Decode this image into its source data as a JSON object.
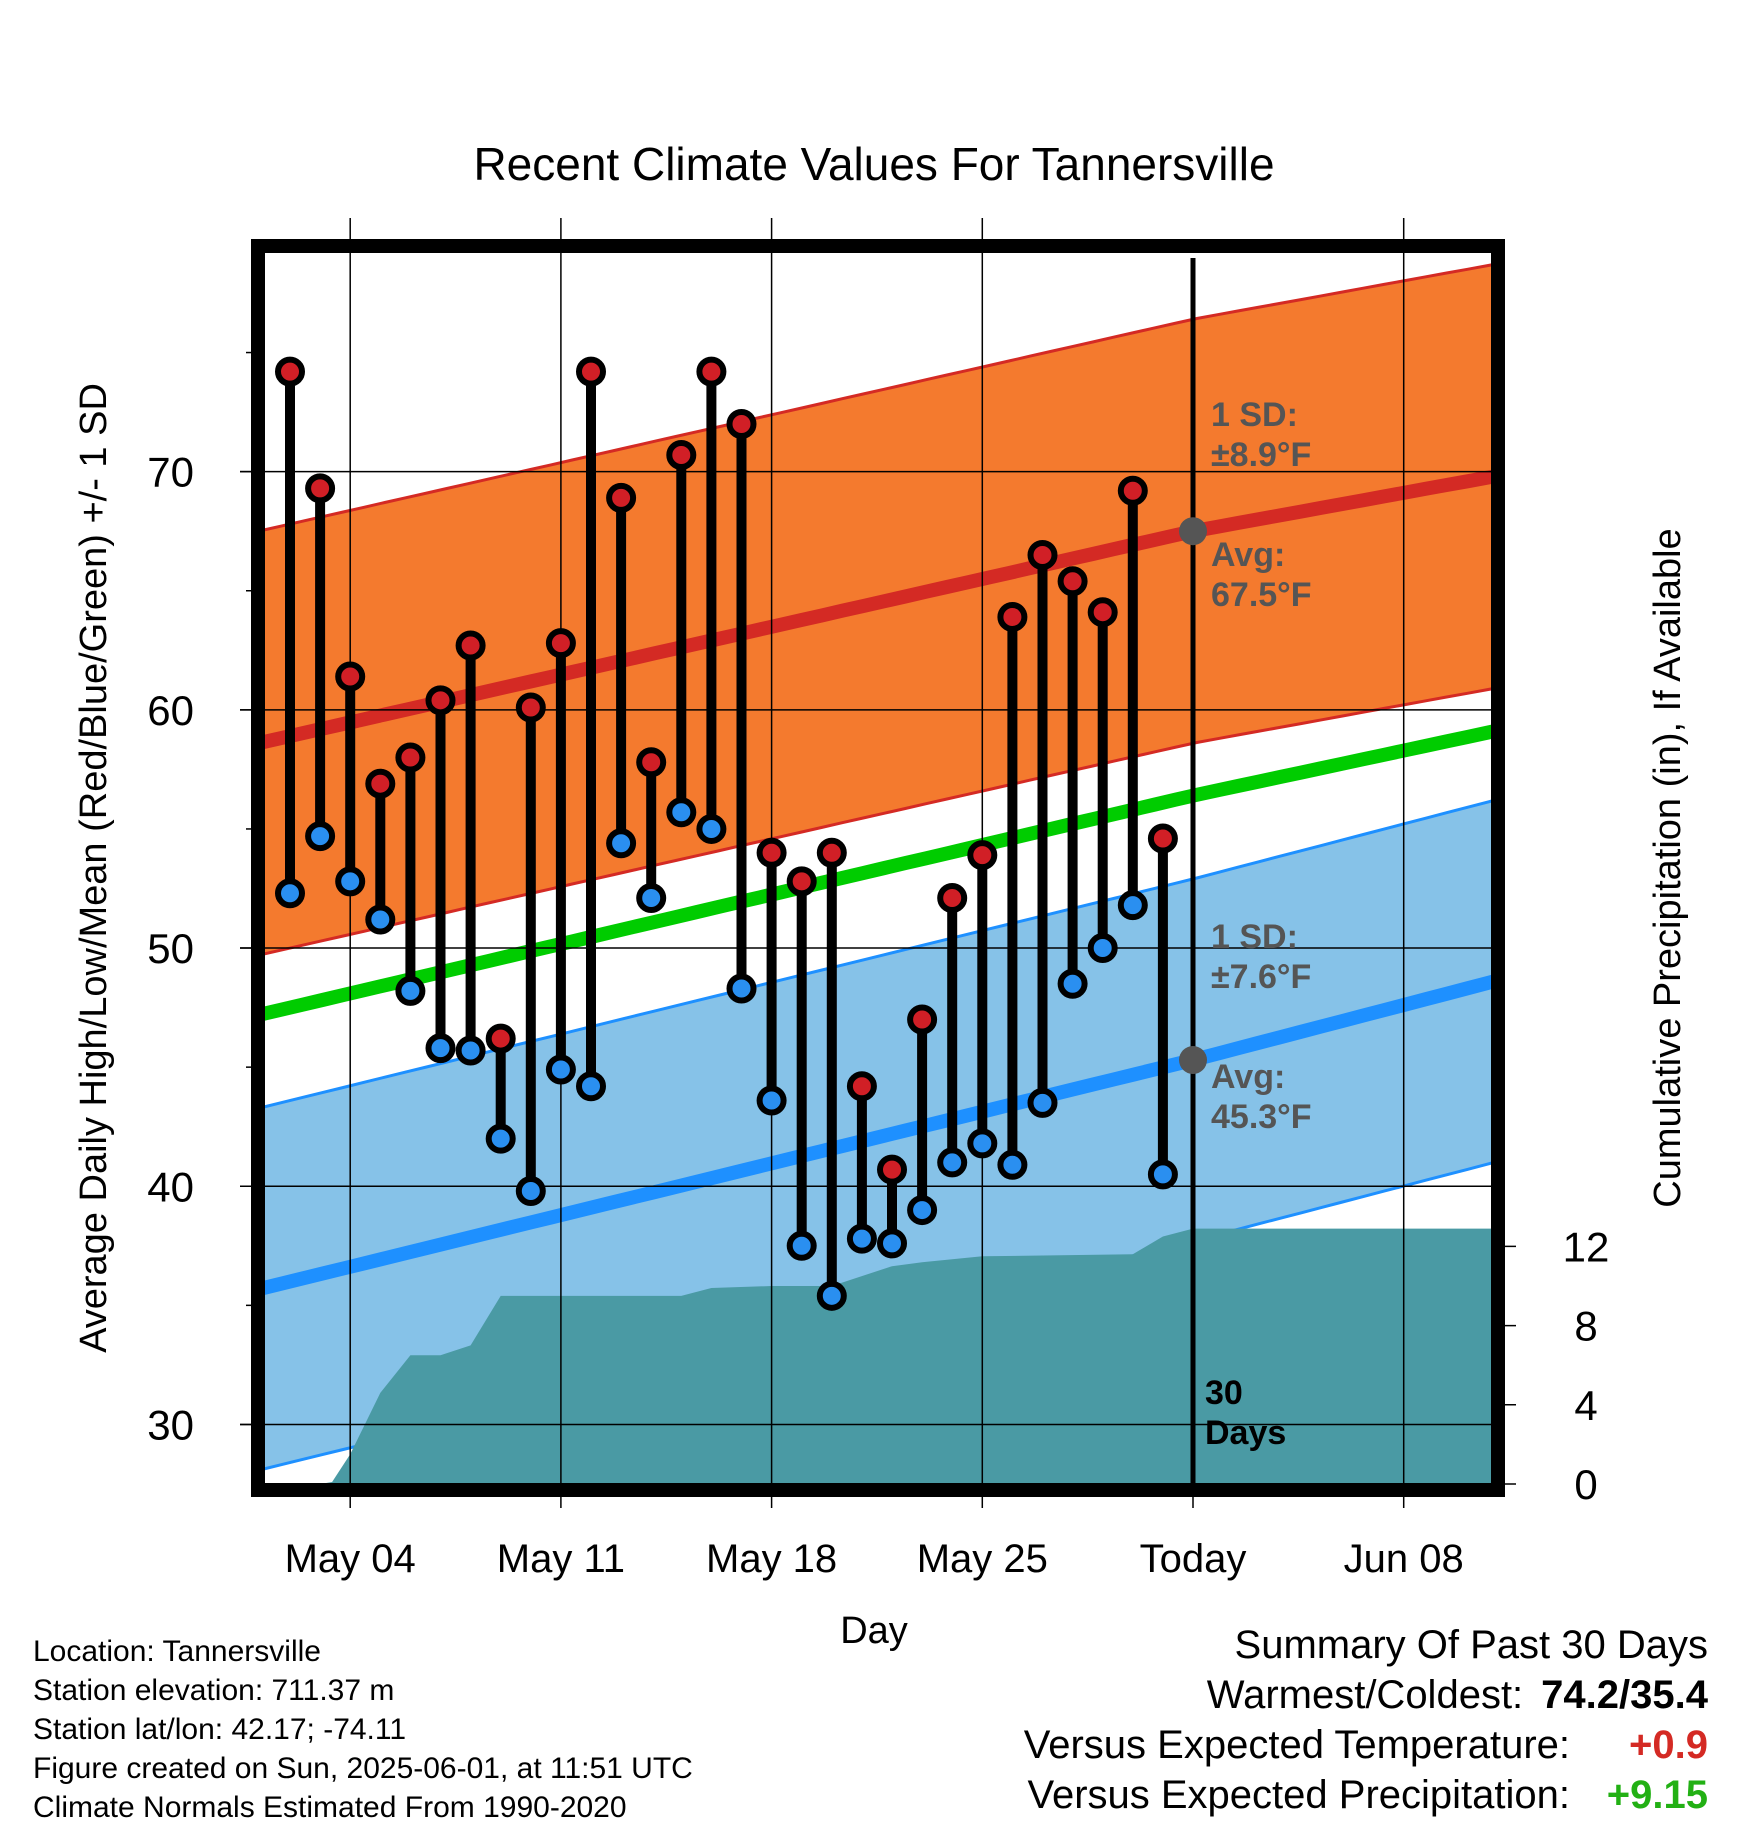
{
  "chart_data": {
    "type": "line",
    "title": "Recent Climate Values For Tannersville",
    "xlabel": "Day",
    "ylabel": "Average Daily High/Low/Mean (Red/Blue/Green) +/- 1 SD",
    "y2label": "Cumulative Precipitation (in), If Available",
    "ylim": [
      27.5,
      80
    ],
    "y2lim": [
      0,
      18
    ],
    "x_ticks": [
      "May 04",
      "May 11",
      "May 18",
      "May 25",
      "Today",
      "Jun 08"
    ],
    "y_ticks": [
      30,
      40,
      50,
      60,
      70
    ],
    "y2_ticks": [
      0,
      4,
      8,
      12
    ],
    "grid": true,
    "first_day": "May 02",
    "today": "Jun 01",
    "last_day": "Jun 11",
    "days": [
      "May 02",
      "May 03",
      "May 04",
      "May 05",
      "May 06",
      "May 07",
      "May 08",
      "May 09",
      "May 10",
      "May 11",
      "May 12",
      "May 13",
      "May 14",
      "May 15",
      "May 16",
      "May 17",
      "May 18",
      "May 19",
      "May 20",
      "May 21",
      "May 22",
      "May 23",
      "May 24",
      "May 25",
      "May 26",
      "May 27",
      "May 28",
      "May 29",
      "May 30",
      "May 31"
    ],
    "observed_high": [
      74.2,
      69.3,
      61.4,
      56.9,
      58.0,
      60.4,
      62.7,
      46.2,
      60.1,
      62.8,
      74.2,
      68.9,
      57.8,
      70.7,
      74.2,
      72.0,
      54.0,
      52.8,
      54.0,
      44.2,
      40.7,
      47.0,
      52.1,
      53.9,
      63.9,
      66.5,
      65.4,
      64.1,
      69.2,
      54.6
    ],
    "observed_low": [
      52.3,
      54.7,
      52.8,
      51.2,
      48.2,
      45.8,
      45.7,
      42.0,
      39.8,
      44.9,
      44.2,
      54.4,
      52.1,
      55.7,
      55.0,
      48.3,
      43.6,
      37.5,
      35.4,
      37.8,
      37.6,
      39.0,
      41.0,
      41.8,
      40.9,
      43.5,
      48.5,
      50.0,
      51.8,
      40.5
    ],
    "normal_high": {
      "name": "Avg High",
      "start": 58.9,
      "today": 67.5,
      "end": 69.8,
      "sd": 8.9
    },
    "normal_low": {
      "name": "Avg Low",
      "start": 36.0,
      "today": 45.3,
      "end": 48.6,
      "sd": 7.6
    },
    "normal_mean": {
      "name": "Avg Mean",
      "start": 47.5,
      "today": 56.4,
      "end": 59.1
    },
    "precip_cumulative": {
      "x": [
        "May 02",
        "May 03",
        "May 03",
        "May 04",
        "May 05",
        "May 06",
        "May 07",
        "May 08",
        "May 09",
        "May 15",
        "May 16",
        "May 18",
        "May 20",
        "May 22",
        "May 23",
        "May 25",
        "May 30",
        "May 31",
        "Jun 01",
        "Jun 11"
      ],
      "values": [
        0,
        0,
        0.1,
        1.5,
        4.6,
        6.5,
        6.5,
        7.0,
        9.5,
        9.5,
        9.9,
        10.0,
        10.0,
        11.0,
        11.2,
        11.5,
        11.6,
        12.5,
        12.9,
        12.9
      ]
    },
    "annotations": {
      "high_sd_label": "1 SD:",
      "high_sd_value": "±8.9°F",
      "high_avg_label": "Avg:",
      "high_avg_value": "67.5°F",
      "low_sd_label": "1 SD:",
      "low_sd_value": "±7.6°F",
      "low_avg_label": "Avg:",
      "low_avg_value": "45.3°F",
      "days_label_1": "30",
      "days_label_2": "Days"
    },
    "colors": {
      "high_band": "#f47a2e",
      "high_line": "#d42a24",
      "low_band": "#86c2e8",
      "low_line": "#1e90ff",
      "mean_line": "#00cc00",
      "precip": "#4a9aa4",
      "high_marker": "#d11f26",
      "low_marker": "#2a8ff0",
      "annotation": "#555555"
    }
  },
  "footer": {
    "location": "Location: Tannersville",
    "elevation": "Station elevation: 711.37 m",
    "latlon": "Station lat/lon: 42.17; -74.11",
    "created": "Figure created on Sun, 2025-06-01, at 11:51 UTC",
    "normals": "Climate Normals Estimated From 1990-2020"
  },
  "summary": {
    "title": "Summary Of Past 30 Days",
    "warmest_label": "Warmest/Coldest:",
    "warmest_value": "74.2/35.4",
    "temp_label": "Versus Expected Temperature:",
    "temp_value": "+0.9",
    "temp_color": "#d42a24",
    "precip_label": "Versus Expected Precipitation:",
    "precip_value": "+9.15",
    "precip_color": "#22b014"
  }
}
